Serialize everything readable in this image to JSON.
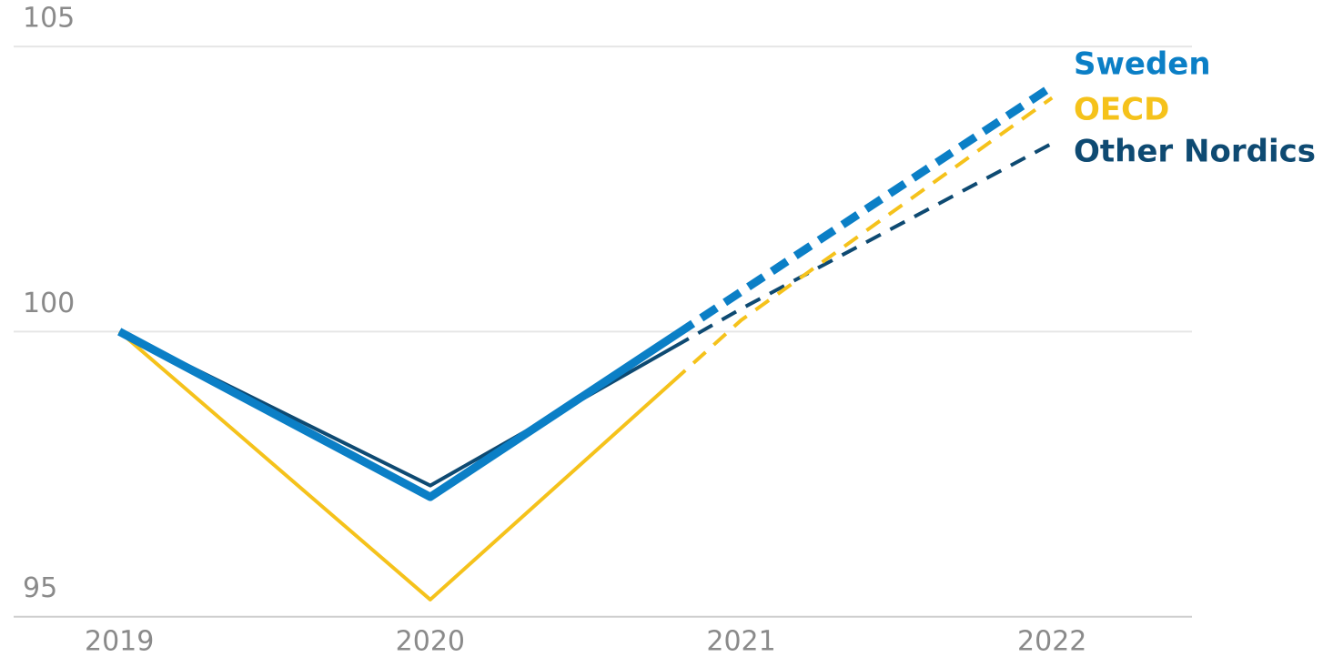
{
  "chart_data": {
    "type": "line",
    "x": [
      2019,
      2020,
      2021,
      2022
    ],
    "xlim": [
      2018.66,
      2022.45
    ],
    "xticks": [
      2019,
      2020,
      2021,
      2022
    ],
    "ylim": [
      94.9,
      105.4
    ],
    "yticks": [
      95,
      100,
      105
    ],
    "grid": true,
    "series": [
      {
        "name": "Other Nordics",
        "color": "#0e4a72",
        "values": [
          100,
          97.3,
          100.4,
          103.3
        ]
      },
      {
        "name": "OECD",
        "color": "#f5c21b",
        "values": [
          100,
          95.3,
          100.2,
          104.1
        ]
      },
      {
        "name": "Sweden",
        "color": "#0b7fc6",
        "values": [
          100,
          97.1,
          100.7,
          104.3
        ]
      }
    ]
  }
}
